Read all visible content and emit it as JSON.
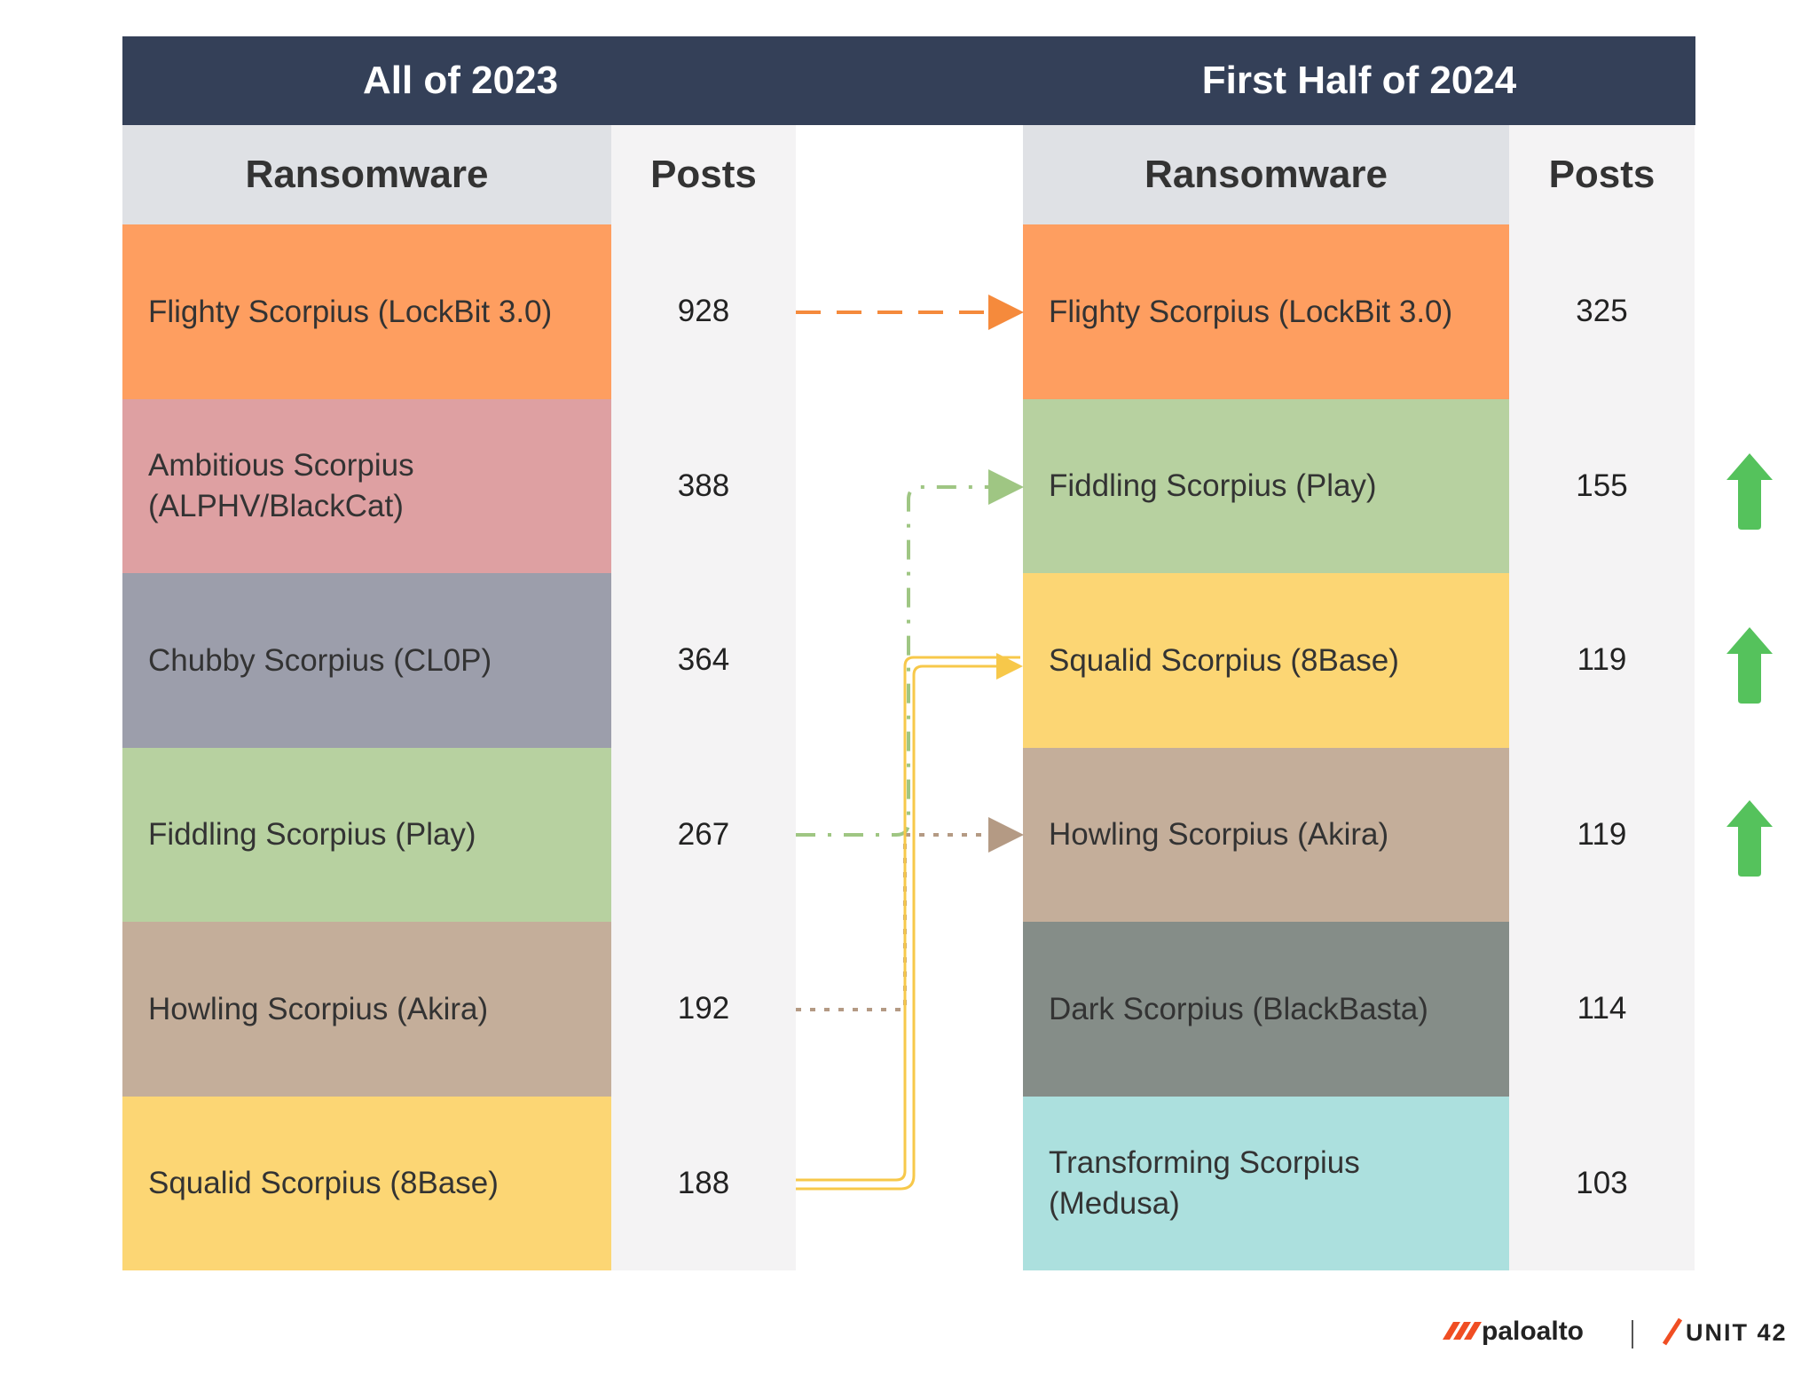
{
  "tables": [
    {
      "title": "All of 2023",
      "headers": [
        "Ransomware",
        "Posts"
      ],
      "rows": [
        {
          "name": "Flighty Scorpius (LockBit 3.0)",
          "posts": 928,
          "color": "#fe9e60"
        },
        {
          "name": "Ambitious Scorpius (ALPHV/BlackCat)",
          "posts": 388,
          "color": "#dea0a2"
        },
        {
          "name": "Chubby Scorpius (CL0P)",
          "posts": 364,
          "color": "#9c9eab"
        },
        {
          "name": "Fiddling Scorpius (Play)",
          "posts": 267,
          "color": "#b7d1a0"
        },
        {
          "name": "Howling Scorpius (Akira)",
          "posts": 192,
          "color": "#c4ae9a"
        },
        {
          "name": "Squalid Scorpius (8Base)",
          "posts": 188,
          "color": "#fcd674"
        }
      ]
    },
    {
      "title": "First Half of 2024",
      "headers": [
        "Ransomware",
        "Posts"
      ],
      "rows": [
        {
          "name": "Flighty Scorpius (LockBit 3.0)",
          "posts": 325,
          "color": "#fe9e60"
        },
        {
          "name": "Fiddling Scorpius (Play)",
          "posts": 155,
          "color": "#b7d1a0"
        },
        {
          "name": "Squalid Scorpius (8Base)",
          "posts": 119,
          "color": "#fcd674"
        },
        {
          "name": "Howling Scorpius (Akira)",
          "posts": 119,
          "color": "#c4ae9a"
        },
        {
          "name": "Dark Scorpius (BlackBasta)",
          "posts": 114,
          "color": "#858d88"
        },
        {
          "name": "Transforming Scorpius (Medusa)",
          "posts": 103,
          "color": "#ace0de"
        }
      ]
    }
  ],
  "logos": {
    "paloalto": "paloalto",
    "unit42": "UNIT 42"
  }
}
